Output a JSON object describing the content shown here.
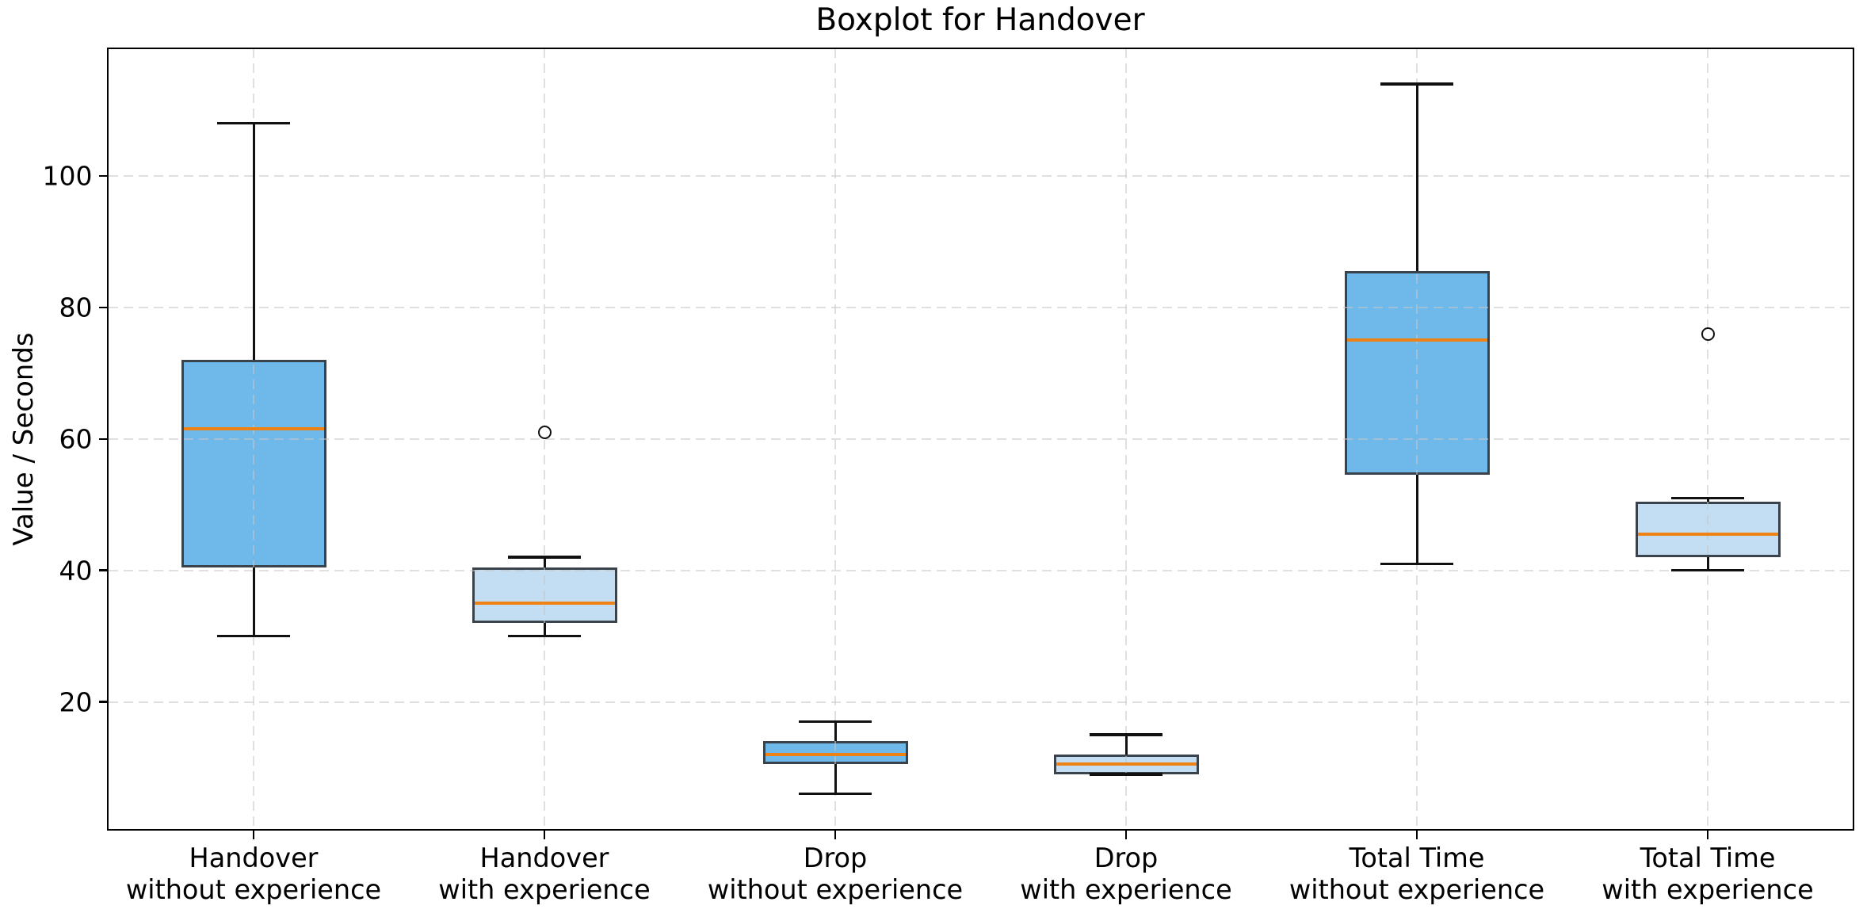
{
  "figure": {
    "title": "Boxplot for Handover",
    "y_axis_label": "Value / Seconds"
  },
  "chart_data": {
    "type": "boxplot",
    "title": "Boxplot for Handover",
    "xlabel": "",
    "ylabel": "Value / Seconds",
    "categories": [
      "Handover\nwithout experience",
      "Handover\nwith experience",
      "Drop\nwithout experience",
      "Drop\nwith experience",
      "Total Time\nwithout experience",
      "Total Time\nwith experience"
    ],
    "yticks": [
      20,
      40,
      60,
      80,
      100
    ],
    "ylim": [
      0.6,
      119.4
    ],
    "grid": {
      "style": "dashed",
      "horizontal": true,
      "vertical": true
    },
    "legend": "none",
    "boxes": [
      {
        "category": "Handover without experience",
        "whisker_low": 30,
        "q1": 40.5,
        "median": 61.5,
        "q3": 72,
        "whisker_high": 108,
        "outliers": [],
        "fill": "#6FB8EA"
      },
      {
        "category": "Handover with experience",
        "whisker_low": 30,
        "q1": 32,
        "median": 35,
        "q3": 40.5,
        "whisker_high": 42,
        "outliers": [
          61
        ],
        "fill": "#C3DDF2"
      },
      {
        "category": "Drop without experience",
        "whisker_low": 6,
        "q1": 10.5,
        "median": 12,
        "q3": 14,
        "whisker_high": 17,
        "outliers": [],
        "fill": "#6FB8EA"
      },
      {
        "category": "Drop with experience",
        "whisker_low": 9,
        "q1": 9,
        "median": 10.5,
        "q3": 12,
        "whisker_high": 15,
        "outliers": [],
        "fill": "#C3DDF2"
      },
      {
        "category": "Total Time without experience",
        "whisker_low": 41,
        "q1": 54.5,
        "median": 75,
        "q3": 85.5,
        "whisker_high": 114,
        "outliers": [],
        "fill": "#6FB8EA"
      },
      {
        "category": "Total Time with experience",
        "whisker_low": 40,
        "q1": 42,
        "median": 45.5,
        "q3": 50.5,
        "whisker_high": 51,
        "outliers": [
          76
        ],
        "fill": "#C3DDF2"
      }
    ],
    "colors": {
      "fill_without_experience": "#6FB8EA",
      "fill_with_experience": "#C3DDF2",
      "median": "#EF8215",
      "box_edge": "#3A434C",
      "whisker": "#111111",
      "grid": "#C7C7C7",
      "spine": "#000000",
      "background": "#FFFFFF",
      "text": "#000000"
    }
  }
}
